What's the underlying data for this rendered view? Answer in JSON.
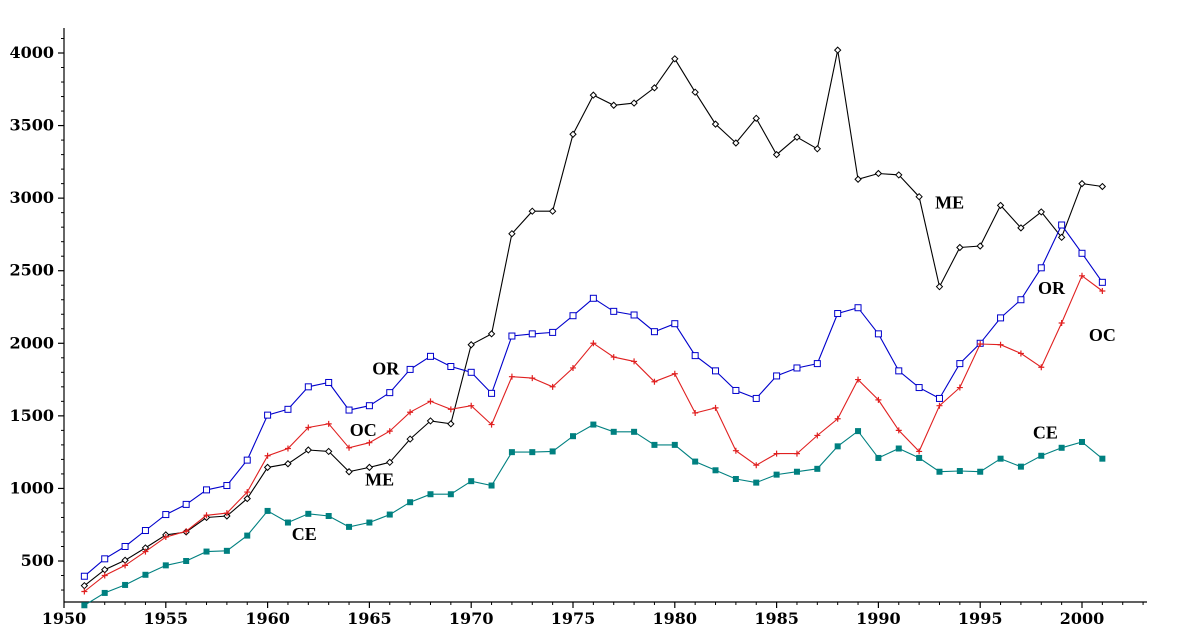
{
  "chart_data": {
    "type": "line",
    "title": "",
    "xlabel": "",
    "ylabel": "",
    "xlim": [
      1950,
      2003
    ],
    "ylim": [
      200,
      4100
    ],
    "grid": false,
    "legend": "none",
    "x_ticks": [
      1950,
      1955,
      1960,
      1965,
      1970,
      1975,
      1980,
      1985,
      1990,
      1995,
      2000
    ],
    "y_ticks": [
      500,
      1000,
      1500,
      2000,
      2500,
      3000,
      3500,
      4000
    ],
    "x": [
      1951,
      1952,
      1953,
      1954,
      1955,
      1956,
      1957,
      1958,
      1959,
      1960,
      1961,
      1962,
      1963,
      1964,
      1965,
      1966,
      1967,
      1968,
      1969,
      1970,
      1971,
      1972,
      1973,
      1974,
      1975,
      1976,
      1977,
      1978,
      1979,
      1980,
      1981,
      1982,
      1983,
      1984,
      1985,
      1986,
      1987,
      1988,
      1989,
      1990,
      1991,
      1992,
      1993,
      1994,
      1995,
      1996,
      1997,
      1998,
      1999,
      2000,
      2001
    ],
    "series": [
      {
        "name": "ME",
        "color": "#000000",
        "marker": "diamond",
        "values": [
          330,
          440,
          505,
          590,
          680,
          700,
          800,
          810,
          930,
          1145,
          1170,
          1265,
          1255,
          1115,
          1145,
          1180,
          1340,
          1465,
          1445,
          1990,
          2065,
          2755,
          2910,
          2910,
          3440,
          3710,
          3640,
          3655,
          3760,
          3960,
          3730,
          3510,
          3380,
          3550,
          3300,
          3420,
          3340,
          4020,
          3130,
          3170,
          3160,
          3010,
          2390,
          2660,
          2670,
          2950,
          2795,
          2905,
          2730,
          3100,
          3080
        ],
        "labels": [
          {
            "text": "ME",
            "x": 1965.5,
            "y": 1020
          },
          {
            "text": "ME",
            "x": 1993.5,
            "y": 2930
          }
        ]
      },
      {
        "name": "OR",
        "color": "#0000cc",
        "marker": "square",
        "values": [
          395,
          515,
          600,
          710,
          820,
          890,
          990,
          1020,
          1195,
          1505,
          1545,
          1700,
          1730,
          1540,
          1570,
          1660,
          1820,
          1910,
          1840,
          1800,
          1655,
          2050,
          2065,
          2075,
          2190,
          2310,
          2220,
          2195,
          2080,
          2135,
          1915,
          1810,
          1675,
          1620,
          1775,
          1830,
          1860,
          2205,
          2245,
          2065,
          1810,
          1695,
          1620,
          1860,
          2000,
          2175,
          2300,
          2520,
          2815,
          2620,
          2420
        ],
        "labels": [
          {
            "text": "OR",
            "x": 1965.8,
            "y": 1785
          },
          {
            "text": "OR",
            "x": 1998.5,
            "y": 2340
          }
        ]
      },
      {
        "name": "OC",
        "color": "#e02020",
        "marker": "plus",
        "values": [
          290,
          400,
          470,
          565,
          665,
          705,
          815,
          830,
          975,
          1225,
          1275,
          1420,
          1445,
          1280,
          1315,
          1395,
          1525,
          1600,
          1545,
          1570,
          1440,
          1770,
          1760,
          1700,
          1830,
          2000,
          1905,
          1875,
          1735,
          1790,
          1520,
          1555,
          1260,
          1160,
          1240,
          1240,
          1365,
          1480,
          1750,
          1610,
          1400,
          1255,
          1570,
          1695,
          1995,
          1990,
          1930,
          1835,
          2140,
          2465,
          2360
        ],
        "labels": [
          {
            "text": "OC",
            "x": 1964.7,
            "y": 1360
          },
          {
            "text": "OC",
            "x": 2001.0,
            "y": 2015
          }
        ]
      },
      {
        "name": "CE",
        "color": "#008080",
        "marker": "filled-square",
        "values": [
          195,
          280,
          335,
          405,
          470,
          500,
          565,
          570,
          675,
          845,
          765,
          825,
          810,
          735,
          765,
          820,
          905,
          960,
          960,
          1050,
          1020,
          1250,
          1250,
          1255,
          1360,
          1440,
          1390,
          1390,
          1300,
          1300,
          1185,
          1125,
          1065,
          1040,
          1095,
          1115,
          1135,
          1290,
          1395,
          1210,
          1275,
          1210,
          1115,
          1120,
          1115,
          1205,
          1150,
          1225,
          1280,
          1320,
          1205
        ],
        "labels": [
          {
            "text": "CE",
            "x": 1961.8,
            "y": 645
          },
          {
            "text": "CE",
            "x": 1998.2,
            "y": 1345
          }
        ]
      }
    ]
  }
}
